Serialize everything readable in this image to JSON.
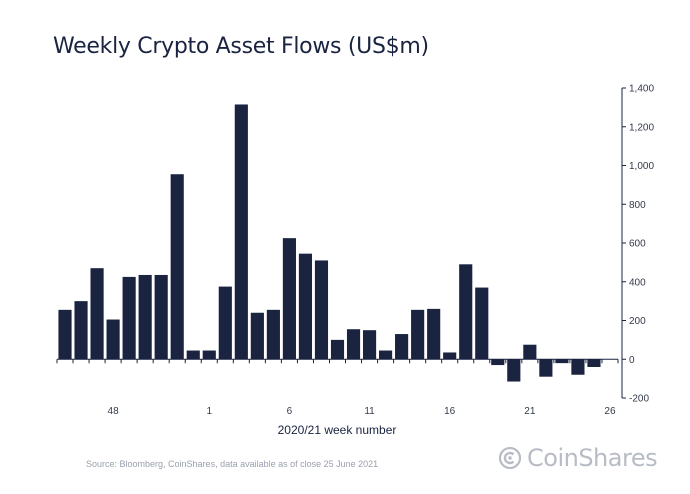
{
  "chart_data": {
    "type": "bar",
    "title": "Weekly Crypto Asset Flows (US$m)",
    "xlabel": "2020/21 week number",
    "ylabel": "",
    "ylim": [
      -200,
      1400
    ],
    "yticks": [
      -200,
      0,
      200,
      400,
      600,
      800,
      1000,
      1200,
      1400
    ],
    "ytick_labels": [
      "-200",
      "0",
      "200",
      "400",
      "600",
      "800",
      "1,000",
      "1,200",
      "1,400"
    ],
    "y_axis_side": "right",
    "grid": false,
    "bar_color": "#1a2340",
    "categories": [
      "45",
      "46",
      "47",
      "48",
      "49",
      "50",
      "51",
      "52",
      "53",
      "1",
      "2",
      "3",
      "4",
      "5",
      "6",
      "7",
      "8",
      "9",
      "10",
      "11",
      "12",
      "13",
      "14",
      "15",
      "16",
      "17",
      "18",
      "19",
      "20",
      "21",
      "22",
      "23",
      "24",
      "25",
      "26"
    ],
    "x_tick_labels": [
      "48",
      "1",
      "6",
      "11",
      "16",
      "21",
      "26"
    ],
    "values": [
      255,
      300,
      470,
      205,
      425,
      435,
      435,
      955,
      45,
      45,
      375,
      1315,
      240,
      255,
      625,
      545,
      510,
      100,
      155,
      150,
      45,
      130,
      255,
      260,
      35,
      490,
      370,
      -30,
      -115,
      75,
      -90,
      -20,
      -80,
      -40,
      0
    ]
  },
  "footer": {
    "source": "Source: Bloomberg, CoinShares, data available as of close 25 June 2021",
    "brand": "CoinShares"
  },
  "brand_color": "#b8bcc5"
}
